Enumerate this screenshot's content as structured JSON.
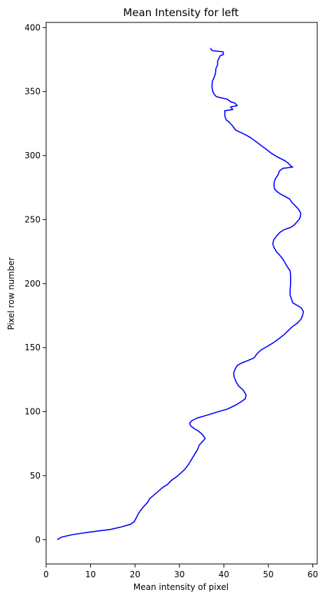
{
  "chart_data": {
    "type": "line",
    "title": "Mean Intensity for left",
    "xlabel": "Mean intensity of pixel",
    "ylabel": "Pixel row number",
    "xlim": [
      0,
      61
    ],
    "ylim": [
      -19,
      404
    ],
    "xticks": [
      0,
      10,
      20,
      30,
      40,
      50,
      60
    ],
    "yticks": [
      0,
      50,
      100,
      150,
      200,
      250,
      300,
      350,
      400
    ],
    "grid": false,
    "series": [
      {
        "color": "#0000ff",
        "points": [
          [
            2.5,
            0
          ],
          [
            3.5,
            2
          ],
          [
            6,
            4
          ],
          [
            10,
            6
          ],
          [
            14.5,
            8
          ],
          [
            17,
            10
          ],
          [
            19,
            12
          ],
          [
            19.8,
            14
          ],
          [
            20.3,
            17
          ],
          [
            20.7,
            20
          ],
          [
            21.3,
            23
          ],
          [
            22,
            26
          ],
          [
            22.8,
            29
          ],
          [
            23.3,
            32
          ],
          [
            24.3,
            35
          ],
          [
            25.3,
            38
          ],
          [
            26.3,
            41
          ],
          [
            27.3,
            43
          ],
          [
            28.1,
            46
          ],
          [
            29.3,
            49
          ],
          [
            30.3,
            52
          ],
          [
            31.2,
            55
          ],
          [
            31.9,
            58
          ],
          [
            32.6,
            62
          ],
          [
            33.3,
            66
          ],
          [
            34,
            70
          ],
          [
            34.5,
            74
          ],
          [
            35.3,
            77
          ],
          [
            35.8,
            79
          ],
          [
            35.2,
            82
          ],
          [
            34.2,
            85
          ],
          [
            33.2,
            87
          ],
          [
            32.5,
            89
          ],
          [
            32.3,
            91
          ],
          [
            32.8,
            93
          ],
          [
            34,
            95
          ],
          [
            36,
            97
          ],
          [
            38.8,
            100
          ],
          [
            40.8,
            102
          ],
          [
            42.6,
            105
          ],
          [
            44,
            108
          ],
          [
            44.8,
            110
          ],
          [
            45,
            113
          ],
          [
            44.3,
            117
          ],
          [
            43.3,
            120
          ],
          [
            42.8,
            123
          ],
          [
            42.3,
            127
          ],
          [
            42.2,
            130
          ],
          [
            42.5,
            133
          ],
          [
            43,
            136
          ],
          [
            44,
            138
          ],
          [
            45.5,
            140
          ],
          [
            46.8,
            142
          ],
          [
            47.4,
            145
          ],
          [
            48.3,
            148
          ],
          [
            49.8,
            151
          ],
          [
            51.2,
            154
          ],
          [
            52.4,
            157
          ],
          [
            53.5,
            160
          ],
          [
            54.4,
            163
          ],
          [
            55.3,
            166
          ],
          [
            56.5,
            169
          ],
          [
            57.3,
            172
          ],
          [
            57.7,
            175
          ],
          [
            57.9,
            178
          ],
          [
            57.4,
            181
          ],
          [
            56.5,
            183
          ],
          [
            55.5,
            185
          ],
          [
            55.2,
            188
          ],
          [
            54.9,
            191
          ],
          [
            54.9,
            195
          ],
          [
            55,
            199
          ],
          [
            55,
            203
          ],
          [
            55,
            207
          ],
          [
            54.9,
            210
          ],
          [
            54.3,
            213
          ],
          [
            53.8,
            216
          ],
          [
            53.3,
            219
          ],
          [
            52.6,
            222
          ],
          [
            51.8,
            225
          ],
          [
            51.3,
            228
          ],
          [
            51,
            231
          ],
          [
            51.2,
            234
          ],
          [
            51.8,
            237
          ],
          [
            52.6,
            240
          ],
          [
            53.5,
            242
          ],
          [
            55.1,
            244
          ],
          [
            55.9,
            246
          ],
          [
            56.4,
            248
          ],
          [
            56.9,
            250
          ],
          [
            57.2,
            252
          ],
          [
            57.3,
            255
          ],
          [
            56.8,
            258
          ],
          [
            56,
            261
          ],
          [
            55.4,
            263
          ],
          [
            54.8,
            266
          ],
          [
            53.8,
            268
          ],
          [
            52.7,
            270
          ],
          [
            51.9,
            272
          ],
          [
            51.4,
            274
          ],
          [
            51.3,
            276
          ],
          [
            51.3,
            279
          ],
          [
            51.6,
            282
          ],
          [
            52.2,
            285
          ],
          [
            52.5,
            288
          ],
          [
            53.3,
            290
          ],
          [
            55.5,
            291
          ],
          [
            55,
            292
          ],
          [
            54.5,
            294
          ],
          [
            53.7,
            296
          ],
          [
            52,
            299
          ],
          [
            50.6,
            302
          ],
          [
            49.5,
            305
          ],
          [
            48.3,
            308
          ],
          [
            47.2,
            311
          ],
          [
            46,
            314
          ],
          [
            45,
            316
          ],
          [
            43.8,
            318
          ],
          [
            42.6,
            320
          ],
          [
            42,
            323
          ],
          [
            41.2,
            326
          ],
          [
            40.5,
            328
          ],
          [
            40.2,
            331
          ],
          [
            40.2,
            335
          ],
          [
            42,
            336
          ],
          [
            41.5,
            338
          ],
          [
            43,
            339
          ],
          [
            42.5,
            341
          ],
          [
            41.5,
            342
          ],
          [
            40.8,
            344
          ],
          [
            39.5,
            345
          ],
          [
            38.3,
            346
          ],
          [
            37.8,
            348
          ],
          [
            37.5,
            350
          ],
          [
            37.3,
            354
          ],
          [
            37.4,
            358
          ],
          [
            37.8,
            361
          ],
          [
            38.1,
            364
          ],
          [
            38.2,
            368
          ],
          [
            38.6,
            371
          ],
          [
            38.6,
            374
          ],
          [
            39.2,
            378
          ],
          [
            39.9,
            379
          ],
          [
            39.8,
            381
          ],
          [
            37.4,
            382
          ],
          [
            37.1,
            383
          ],
          [
            37,
            384
          ]
        ]
      }
    ]
  }
}
